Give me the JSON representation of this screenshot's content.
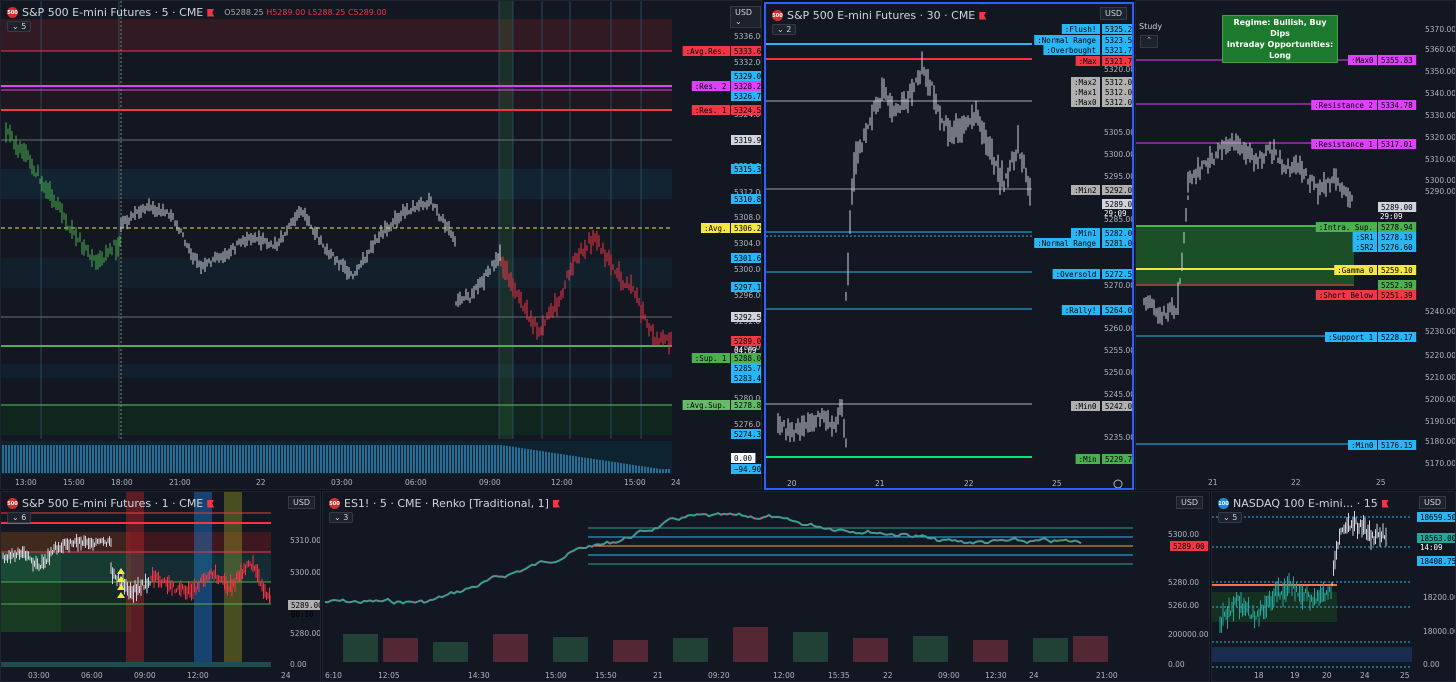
{
  "p1": {
    "title": "S&P 500 E-mini Futures · 5 · CME",
    "ohlc": {
      "o": "O5288.25",
      "h": "H5289.00",
      "l": "L5288.25",
      "c": "C5289.00"
    },
    "collapse": "5",
    "currency": "USD",
    "ticks": [
      {
        "t": "5336.00",
        "y": 35
      },
      {
        "t": "5332.00",
        "y": 61
      },
      {
        "t": "5328.00",
        "y": 87
      },
      {
        "t": "5324.00",
        "y": 113
      },
      {
        "t": "5320.00",
        "y": 139
      },
      {
        "t": "5316.00",
        "y": 165
      },
      {
        "t": "5312.00",
        "y": 191
      },
      {
        "t": "5308.00",
        "y": 216
      },
      {
        "t": "5304.00",
        "y": 242
      },
      {
        "t": "5300.00",
        "y": 268
      },
      {
        "t": "5296.00",
        "y": 294
      },
      {
        "t": "5292.00",
        "y": 320
      },
      {
        "t": "5288.00",
        "y": 346
      },
      {
        "t": "5284.00",
        "y": 371
      },
      {
        "t": "5280.00",
        "y": 397
      },
      {
        "t": "5276.00",
        "y": 423
      }
    ],
    "labels": [
      {
        "tag": ":Avg.Res.",
        "tagc": "#f23645",
        "v": "5333.63",
        "c": "#f23645",
        "y": 50
      },
      {
        "v": "5329.06",
        "c": "#29b6f6",
        "y": 75
      },
      {
        "tag": ":Res. 2",
        "tagc": "#e040fb",
        "v": "5328.25",
        "c": "#e040fb",
        "y": 85
      },
      {
        "v": "5326.78",
        "c": "#29b6f6",
        "y": 95
      },
      {
        "tag": ":Res. 1",
        "tagc": "#f23645",
        "v": "5324.50",
        "c": "#f23645",
        "y": 109
      },
      {
        "v": "5319.94",
        "c": "#d1d4dc",
        "y": 139
      },
      {
        "v": "5315.38",
        "c": "#29b6f6",
        "y": 168
      },
      {
        "v": "5310.81",
        "c": "#29b6f6",
        "y": 198
      },
      {
        "tag": ":Avg.",
        "tagc": "#f5e642",
        "v": "5306.25",
        "c": "#f5e642",
        "y": 227
      },
      {
        "v": "5301.69",
        "c": "#29b6f6",
        "y": 257
      },
      {
        "v": "5297.13",
        "c": "#29b6f6",
        "y": 286
      },
      {
        "v": "5292.56",
        "c": "#d1d4dc",
        "y": 316
      },
      {
        "v": "5289.00",
        "sub": "04:09",
        "c": "#f23645",
        "y": 340
      },
      {
        "tag": ":Sup. 1",
        "tagc": "#4caf50",
        "v": "5288.00",
        "c": "#4caf50",
        "y": 357
      },
      {
        "v": "5285.72",
        "c": "#29b6f6",
        "y": 367
      },
      {
        "v": "5283.44",
        "c": "#29b6f6",
        "y": 377
      },
      {
        "tag": ":Avg.Sup.",
        "tagc": "#66bb6a",
        "v": "5278.88",
        "c": "#66bb6a",
        "y": 404
      },
      {
        "v": "5274.31",
        "c": "#29b6f6",
        "y": 433
      }
    ],
    "osc": [
      "0.00",
      "−94.90"
    ],
    "xt": [
      "13:00",
      "15:00",
      "18:00",
      "21:00",
      "22",
      "03:00",
      "06:00",
      "09:00",
      "12:00",
      "15:00",
      "24"
    ]
  },
  "p2": {
    "title": "S&P 500 E-mini Futures · 30 · CME",
    "collapse": "2",
    "currency": "USD",
    "labels": [
      {
        "tag": ":Flush!",
        "v": "5325.25",
        "c": "#29b6f6",
        "y": 25
      },
      {
        "tag": ":Normal Range",
        "v": "5323.50",
        "c": "#29b6f6",
        "y": 36
      },
      {
        "tag": ":Overbought",
        "v": "5321.75",
        "c": "#29b6f6",
        "y": 46
      },
      {
        "tag": ":Max",
        "v": "5321.75",
        "c": "#f23645",
        "y": 57
      },
      {
        "tag": ":Max2",
        "v": "5312.00",
        "c": "#b0b0b0",
        "y": 78
      },
      {
        "tag": ":Max1",
        "v": "5312.00",
        "c": "#b0b0b0",
        "y": 88
      },
      {
        "tag": ":Max0",
        "v": "5312.00",
        "c": "#b0b0b0",
        "y": 98
      },
      {
        "tag": ":Min2",
        "v": "5292.00",
        "c": "#b0b0b0",
        "y": 186
      },
      {
        "v": "5289.00",
        "sub": "29:09",
        "c": "#d1d4dc",
        "y": 200
      },
      {
        "tag": ":Min1",
        "v": "5282.00",
        "c": "#29b6f6",
        "y": 229
      },
      {
        "tag": ":Normal Range",
        "v": "5281.00",
        "c": "#29b6f6",
        "y": 239
      },
      {
        "tag": ":Oversold",
        "v": "5272.50",
        "c": "#29b6f6",
        "y": 270
      },
      {
        "tag": ":Rally!",
        "v": "5264.00",
        "c": "#29b6f6",
        "y": 306
      },
      {
        "tag": ":Min0",
        "v": "5242.00",
        "c": "#b0b0b0",
        "y": 402
      },
      {
        "tag": ":Min",
        "v": "5229.75",
        "c": "#4caf50",
        "y": 455
      }
    ],
    "ticks": [
      {
        "t": "5320.00",
        "y": 65
      },
      {
        "t": "5305.00",
        "y": 128
      },
      {
        "t": "5300.00",
        "y": 150
      },
      {
        "t": "5295.00",
        "y": 172
      },
      {
        "t": "5285.00",
        "y": 215
      },
      {
        "t": "5270.00",
        "y": 281
      },
      {
        "t": "5260.00",
        "y": 324
      },
      {
        "t": "5255.00",
        "y": 346
      },
      {
        "t": "5250.00",
        "y": 368
      },
      {
        "t": "5245.00",
        "y": 390
      },
      {
        "t": "5235.00",
        "y": 433
      }
    ],
    "xt": [
      "20",
      "21",
      "22",
      "25"
    ]
  },
  "p3": {
    "study": "Study",
    "regime1": "Regime: Bullish, Buy Dips",
    "regime2": "Intraday Opportunities: Long",
    "currency": "USD",
    "ticks": [
      {
        "t": "5370.00",
        "y": 28
      },
      {
        "t": "5360.00",
        "y": 48
      },
      {
        "t": "5350.00",
        "y": 70
      },
      {
        "t": "5340.00",
        "y": 92
      },
      {
        "t": "5330.00",
        "y": 114
      },
      {
        "t": "5320.00",
        "y": 136
      },
      {
        "t": "5310.00",
        "y": 158
      },
      {
        "t": "5300.00",
        "y": 179
      },
      {
        "t": "5290.00",
        "y": 190
      },
      {
        "t": "5240.00",
        "y": 310
      },
      {
        "t": "5230.00",
        "y": 330
      },
      {
        "t": "5220.00",
        "y": 354
      },
      {
        "t": "5210.00",
        "y": 376
      },
      {
        "t": "5200.00",
        "y": 398
      },
      {
        "t": "5190.00",
        "y": 420
      },
      {
        "t": "5180.00",
        "y": 440
      },
      {
        "t": "5170.00",
        "y": 462
      }
    ],
    "labels": [
      {
        "tag": ":Max0",
        "tagc": "#e040fb",
        "v": "5355.83",
        "c": "#e040fb",
        "y": 59
      },
      {
        "tag": ":Resistance 2",
        "tagc": "#e040fb",
        "v": "5334.78",
        "c": "#e040fb",
        "y": 104
      },
      {
        "tag": ":Resistance 1",
        "tagc": "#e040fb",
        "v": "5317.01",
        "c": "#e040fb",
        "y": 143
      },
      {
        "v": "5289.00",
        "sub": "29:09",
        "c": "#d1d4dc",
        "y": 206
      },
      {
        "tag": ":Intra. Sup.",
        "tagc": "#4caf50",
        "v": "5278.94",
        "c": "#4caf50",
        "y": 226
      },
      {
        "tag": ":SR1",
        "tagc": "#29b6f6",
        "v": "5278.19",
        "c": "#29b6f6",
        "y": 236
      },
      {
        "tag": ":SR2",
        "tagc": "#29b6f6",
        "v": "5276.60",
        "c": "#29b6f6",
        "y": 246
      },
      {
        "tag": ":Gamma 0",
        "tagc": "#f5e642",
        "v": "5259.10",
        "c": "#f5e642",
        "y": 269
      },
      {
        "v": "5252.39",
        "c": "#4caf50",
        "y": 284
      },
      {
        "tag": ":Short Below",
        "tagc": "#f23645",
        "v": "5251.39",
        "c": "#f23645",
        "y": 294
      },
      {
        "tag": ":Support 1",
        "tagc": "#29b6f6",
        "v": "5228.17",
        "c": "#29b6f6",
        "y": 336
      },
      {
        "tag": ":Min0",
        "tagc": "#29b6f6",
        "v": "5176.15",
        "c": "#29b6f6",
        "y": 444
      }
    ],
    "xt": [
      "21",
      "22",
      "25"
    ]
  },
  "p4": {
    "title": "S&P 500 E-mini Futures · 1 · CME",
    "collapse": "6",
    "currency": "USD",
    "ticks": [
      {
        "t": "5310.00",
        "y": 539
      },
      {
        "t": "5300.00",
        "y": 571
      },
      {
        "t": "5280.00",
        "y": 632
      },
      {
        "t": "0.00",
        "y": 663
      }
    ],
    "price": "5289.00",
    "sub": "00:10",
    "xt": [
      "03:00",
      "06:00",
      "09:00",
      "12:00",
      "24"
    ]
  },
  "p5": {
    "title": "ES1! · 5 · CME · Renko [Traditional, 1]",
    "collapse": "3",
    "currency": "USD",
    "levels": [
      "(5304.50)",
      "(5297.00)",
      "(5289.50)",
      "(5282.00)",
      "(5274.50)"
    ],
    "price": "5289.00",
    "ticks": [
      {
        "t": "5300.00",
        "y": 533
      },
      {
        "t": "5280.00",
        "y": 581
      },
      {
        "t": "5260.00",
        "y": 604
      },
      {
        "t": "200000.00",
        "y": 633
      },
      {
        "t": "0.00",
        "y": 663
      }
    ],
    "xt": [
      "6:10",
      "12:05",
      "14:30",
      "15:00",
      "15:50",
      "21",
      "09:20",
      "12:00",
      "15:35",
      "22",
      "09:00",
      "12:30",
      "24",
      "21:00"
    ]
  },
  "p6": {
    "title": "NASDAQ 100 E-mini... · 15",
    "collapse": "5",
    "currency": "USD",
    "labels": [
      {
        "v": "18659.50",
        "c": "#29b6f6",
        "y": 516
      },
      {
        "v": "18563.00",
        "sub": "14:09",
        "c": "#26a69a",
        "y": 537
      },
      {
        "v": "18408.75",
        "c": "#29b6f6",
        "y": 560
      }
    ],
    "ticks": [
      {
        "t": "18200.00",
        "y": 596
      },
      {
        "t": "18000.00",
        "y": 630
      },
      {
        "t": "0.00",
        "y": 663
      }
    ],
    "xt": [
      "18",
      "19",
      "20",
      "24",
      "25"
    ]
  }
}
